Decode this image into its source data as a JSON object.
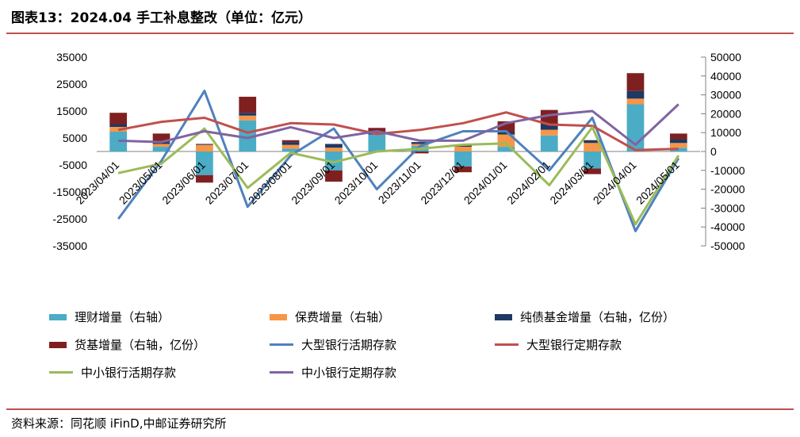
{
  "header": {
    "title": "图表13：2024.04 手工补息整改（单位：亿元）"
  },
  "footer": {
    "source": "资料来源：同花顺 iFinD,中邮证券研究所"
  },
  "chart_data": {
    "type": "bar",
    "categories": [
      "2023/04/01",
      "2023/05/01",
      "2023/06/01",
      "2023/07/01",
      "2023/08/01",
      "2023/09/01",
      "2023/10/01",
      "2023/11/01",
      "2023/12/01",
      "2024/01/01",
      "2024/02/01",
      "2024/03/01",
      "2024/04/01",
      "2024/05/01"
    ],
    "left_axis": {
      "ylim": [
        -35000,
        35000
      ],
      "ticks": [
        "35000",
        "25000",
        "15000",
        "5000",
        "-5000",
        "-15000",
        "-25000",
        "-35000"
      ]
    },
    "right_axis": {
      "ylim": [
        -50000,
        50000
      ],
      "ticks": [
        "50000",
        "40000",
        "30000",
        "20000",
        "10000",
        "0",
        "-10000",
        "-20000",
        "-30000",
        "-40000",
        "-50000"
      ]
    },
    "bar_series": [
      {
        "name": "理财增量（右轴）",
        "color": "#4bacc6",
        "values": [
          10500,
          2500,
          -12500,
          16500,
          1500,
          -10000,
          9000,
          3000,
          -8000,
          2500,
          8500,
          -9000,
          25000,
          2000
        ]
      },
      {
        "name": "保费增量（右轴）",
        "color": "#f79646",
        "values": [
          2500,
          1500,
          3500,
          2500,
          2000,
          2000,
          0,
          1000,
          2500,
          6500,
          3000,
          4500,
          3000,
          2500
        ]
      },
      {
        "name": "纯债基金增量（右轴，亿份）",
        "color": "#1f3864",
        "values": [
          1500,
          1000,
          500,
          1500,
          1500,
          2000,
          500,
          1000,
          1000,
          1500,
          3000,
          1500,
          4000,
          2000
        ]
      },
      {
        "name": "货基增量（右轴，亿份）",
        "color": "#7f2020",
        "values": [
          6000,
          4500,
          -4000,
          8500,
          1000,
          -6000,
          3000,
          -1000,
          -3000,
          5500,
          7500,
          -3000,
          9500,
          3000
        ]
      }
    ],
    "line_series": [
      {
        "name": "大型银行活期存款",
        "color": "#4f81bd",
        "values": [
          -25000,
          -3500,
          22500,
          -20500,
          -1500,
          8500,
          -14000,
          2000,
          7500,
          7500,
          -7000,
          12500,
          -29500,
          -2500
        ]
      },
      {
        "name": "大型银行定期存款",
        "color": "#c0504d",
        "values": [
          8000,
          11000,
          12500,
          7000,
          10500,
          10000,
          6500,
          8000,
          10500,
          14500,
          10000,
          9500,
          500,
          1000
        ]
      },
      {
        "name": "中小银行活期存款",
        "color": "#9bbb59",
        "values": [
          -8000,
          -4500,
          8500,
          -13500,
          -500,
          -4000,
          0,
          1000,
          2500,
          3000,
          -12500,
          9000,
          -27000,
          -1500
        ]
      },
      {
        "name": "中小银行定期存款",
        "color": "#8064a2",
        "values": [
          4000,
          3500,
          7500,
          5000,
          9000,
          5000,
          7500,
          4000,
          4000,
          10500,
          13500,
          15000,
          2500,
          17500
        ]
      }
    ],
    "legend_position": "bottom"
  }
}
